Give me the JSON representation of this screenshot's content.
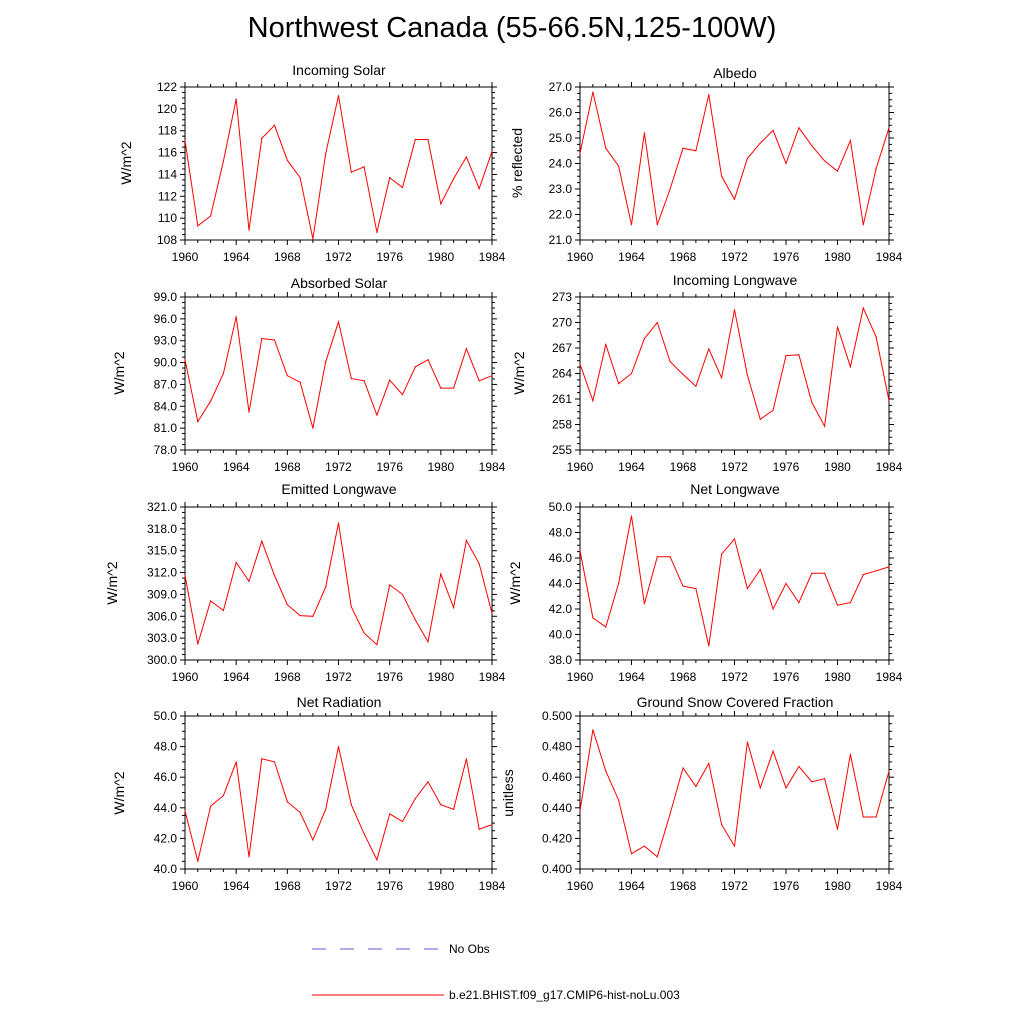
{
  "figure": {
    "title": "Northwest Canada (55-66.5N,125-100W)"
  },
  "legend": {
    "entries": [
      {
        "label": "No Obs",
        "style": "dashed",
        "color": "#5b5bd6"
      },
      {
        "label": "b.e21.BHIST.f09_g17.CMIP6-hist-noLu.003",
        "style": "solid",
        "color": "#ff0000"
      }
    ]
  },
  "chart_data": [
    {
      "type": "line",
      "title": "Incoming Solar",
      "ylabel": "W/m^2",
      "xlim": [
        1960,
        1984
      ],
      "ylim": [
        108,
        122
      ],
      "x_ticks": [
        "1960",
        "1964",
        "1968",
        "1972",
        "1976",
        "1980",
        "1984"
      ],
      "y_ticks": [
        "108",
        "110",
        "112",
        "114",
        "116",
        "118",
        "120",
        "122"
      ],
      "x": [
        1960,
        1961,
        1962,
        1963,
        1964,
        1965,
        1966,
        1967,
        1968,
        1969,
        1970,
        1971,
        1972,
        1973,
        1974,
        1975,
        1976,
        1977,
        1978,
        1979,
        1980,
        1981,
        1982,
        1983,
        1984
      ],
      "series": [
        {
          "name": "b.e21.BHIST.f09_g17.CMIP6-hist-noLu.003",
          "color": "#ff0000",
          "values": [
            117.1,
            109.3,
            110.2,
            115.2,
            120.9,
            108.9,
            117.3,
            118.5,
            115.3,
            113.7,
            108.1,
            115.9,
            121.2,
            114.2,
            114.7,
            108.7,
            113.7,
            112.8,
            117.2,
            117.2,
            111.3,
            113.6,
            115.6,
            112.7,
            116.1
          ]
        }
      ]
    },
    {
      "type": "line",
      "title": "Albedo",
      "ylabel": "% reflected",
      "xlim": [
        1960,
        1984
      ],
      "ylim": [
        21.0,
        27.0
      ],
      "x_ticks": [
        "1960",
        "1964",
        "1968",
        "1972",
        "1976",
        "1980",
        "1984"
      ],
      "y_ticks": [
        "21.0",
        "22.0",
        "23.0",
        "24.0",
        "25.0",
        "26.0",
        "27.0"
      ],
      "x": [
        1960,
        1961,
        1962,
        1963,
        1964,
        1965,
        1966,
        1967,
        1968,
        1969,
        1970,
        1971,
        1972,
        1973,
        1974,
        1975,
        1976,
        1977,
        1978,
        1979,
        1980,
        1981,
        1982,
        1983,
        1984
      ],
      "series": [
        {
          "name": "b.e21.BHIST.f09_g17.CMIP6-hist-noLu.003",
          "color": "#ff0000",
          "values": [
            24.4,
            26.8,
            24.6,
            23.9,
            21.6,
            25.2,
            21.6,
            23.0,
            24.6,
            24.5,
            26.7,
            23.5,
            22.6,
            24.2,
            24.8,
            25.3,
            24.0,
            25.4,
            24.7,
            24.1,
            23.7,
            24.9,
            21.6,
            23.8,
            25.4
          ]
        }
      ]
    },
    {
      "type": "line",
      "title": "Absorbed Solar",
      "ylabel": "W/m^2",
      "xlim": [
        1960,
        1984
      ],
      "ylim": [
        78.0,
        99.0
      ],
      "x_ticks": [
        "1960",
        "1964",
        "1968",
        "1972",
        "1976",
        "1980",
        "1984"
      ],
      "y_ticks": [
        "78.0",
        "81.0",
        "84.0",
        "87.0",
        "90.0",
        "93.0",
        "96.0",
        "99.0"
      ],
      "x": [
        1960,
        1961,
        1962,
        1963,
        1964,
        1965,
        1966,
        1967,
        1968,
        1969,
        1970,
        1971,
        1972,
        1973,
        1974,
        1975,
        1976,
        1977,
        1978,
        1979,
        1980,
        1981,
        1982,
        1983,
        1984
      ],
      "series": [
        {
          "name": "b.e21.BHIST.f09_g17.CMIP6-hist-noLu.003",
          "color": "#ff0000",
          "values": [
            90.4,
            81.9,
            84.7,
            88.5,
            96.3,
            83.2,
            93.3,
            93.1,
            88.2,
            87.3,
            81.0,
            90.1,
            95.6,
            87.8,
            87.5,
            82.8,
            87.6,
            85.6,
            89.4,
            90.4,
            86.5,
            86.5,
            91.9,
            87.5,
            88.2
          ]
        }
      ]
    },
    {
      "type": "line",
      "title": "Incoming Longwave",
      "ylabel": "W/m^2",
      "xlim": [
        1960,
        1984
      ],
      "ylim": [
        255,
        273
      ],
      "x_ticks": [
        "1960",
        "1964",
        "1968",
        "1972",
        "1976",
        "1980",
        "1984"
      ],
      "y_ticks": [
        "255",
        "258",
        "261",
        "264",
        "267",
        "270",
        "273"
      ],
      "x": [
        1960,
        1961,
        1962,
        1963,
        1964,
        1965,
        1966,
        1967,
        1968,
        1969,
        1970,
        1971,
        1972,
        1973,
        1974,
        1975,
        1976,
        1977,
        1978,
        1979,
        1980,
        1981,
        1982,
        1983,
        1984
      ],
      "series": [
        {
          "name": "b.e21.BHIST.f09_g17.CMIP6-hist-noLu.003",
          "color": "#ff0000",
          "values": [
            265.1,
            260.8,
            267.4,
            262.8,
            264.0,
            268.1,
            270.0,
            265.4,
            263.9,
            262.5,
            266.9,
            263.5,
            271.5,
            263.8,
            258.6,
            259.7,
            266.1,
            266.2,
            260.6,
            257.8,
            269.5,
            264.8,
            271.7,
            268.3,
            260.8
          ]
        }
      ]
    },
    {
      "type": "line",
      "title": "Emitted Longwave",
      "ylabel": "W/m^2",
      "xlim": [
        1960,
        1984
      ],
      "ylim": [
        300.0,
        321.0
      ],
      "x_ticks": [
        "1960",
        "1964",
        "1968",
        "1972",
        "1976",
        "1980",
        "1984"
      ],
      "y_ticks": [
        "300.0",
        "303.0",
        "306.0",
        "309.0",
        "312.0",
        "315.0",
        "318.0",
        "321.0"
      ],
      "x": [
        1960,
        1961,
        1962,
        1963,
        1964,
        1965,
        1966,
        1967,
        1968,
        1969,
        1970,
        1971,
        1972,
        1973,
        1974,
        1975,
        1976,
        1977,
        1978,
        1979,
        1980,
        1981,
        1982,
        1983,
        1984
      ],
      "series": [
        {
          "name": "b.e21.BHIST.f09_g17.CMIP6-hist-noLu.003",
          "color": "#ff0000",
          "values": [
            311.6,
            302.2,
            308.1,
            306.8,
            313.4,
            310.8,
            316.3,
            311.6,
            307.6,
            306.1,
            306.0,
            310.0,
            318.8,
            307.3,
            303.7,
            302.1,
            310.3,
            309.0,
            305.5,
            302.5,
            311.8,
            307.2,
            316.4,
            313.2,
            306.4
          ]
        }
      ]
    },
    {
      "type": "line",
      "title": "Net Longwave",
      "ylabel": "W/m^2",
      "xlim": [
        1960,
        1984
      ],
      "ylim": [
        38.0,
        50.0
      ],
      "x_ticks": [
        "1960",
        "1964",
        "1968",
        "1972",
        "1976",
        "1980",
        "1984"
      ],
      "y_ticks": [
        "38.0",
        "40.0",
        "42.0",
        "44.0",
        "46.0",
        "48.0",
        "50.0"
      ],
      "x": [
        1960,
        1961,
        1962,
        1963,
        1964,
        1965,
        1966,
        1967,
        1968,
        1969,
        1970,
        1971,
        1972,
        1973,
        1974,
        1975,
        1976,
        1977,
        1978,
        1979,
        1980,
        1981,
        1982,
        1983,
        1984
      ],
      "series": [
        {
          "name": "b.e21.BHIST.f09_g17.CMIP6-hist-noLu.003",
          "color": "#ff0000",
          "values": [
            46.6,
            41.3,
            40.6,
            44.0,
            49.3,
            42.4,
            46.1,
            46.1,
            43.8,
            43.6,
            39.1,
            46.3,
            47.5,
            43.6,
            45.1,
            42.0,
            44.0,
            42.5,
            44.8,
            44.8,
            42.3,
            42.5,
            44.7,
            45.0,
            45.3
          ]
        }
      ]
    },
    {
      "type": "line",
      "title": "Net Radiation",
      "ylabel": "W/m^2",
      "xlim": [
        1960,
        1984
      ],
      "ylim": [
        40.0,
        50.0
      ],
      "x_ticks": [
        "1960",
        "1964",
        "1968",
        "1972",
        "1976",
        "1980",
        "1984"
      ],
      "y_ticks": [
        "40.0",
        "42.0",
        "44.0",
        "46.0",
        "48.0",
        "50.0"
      ],
      "x": [
        1960,
        1961,
        1962,
        1963,
        1964,
        1965,
        1966,
        1967,
        1968,
        1969,
        1970,
        1971,
        1972,
        1973,
        1974,
        1975,
        1976,
        1977,
        1978,
        1979,
        1980,
        1981,
        1982,
        1983,
        1984
      ],
      "series": [
        {
          "name": "b.e21.BHIST.f09_g17.CMIP6-hist-noLu.003",
          "color": "#ff0000",
          "values": [
            43.8,
            40.5,
            44.1,
            44.8,
            47.0,
            40.8,
            47.2,
            47.0,
            44.4,
            43.7,
            41.9,
            43.9,
            48.0,
            44.2,
            42.3,
            40.6,
            43.6,
            43.1,
            44.6,
            45.7,
            44.2,
            43.9,
            47.2,
            42.6,
            42.9
          ]
        }
      ]
    },
    {
      "type": "line",
      "title": "Ground Snow Covered Fraction",
      "ylabel": "unitless",
      "xlim": [
        1960,
        1984
      ],
      "ylim": [
        0.4,
        0.5
      ],
      "x_ticks": [
        "1960",
        "1964",
        "1968",
        "1972",
        "1976",
        "1980",
        "1984"
      ],
      "y_ticks": [
        "0.400",
        "0.420",
        "0.440",
        "0.460",
        "0.480",
        "0.500"
      ],
      "x": [
        1960,
        1961,
        1962,
        1963,
        1964,
        1965,
        1966,
        1967,
        1968,
        1969,
        1970,
        1971,
        1972,
        1973,
        1974,
        1975,
        1976,
        1977,
        1978,
        1979,
        1980,
        1981,
        1982,
        1983,
        1984
      ],
      "series": [
        {
          "name": "b.e21.BHIST.f09_g17.CMIP6-hist-noLu.003",
          "color": "#ff0000",
          "values": [
            0.438,
            0.491,
            0.464,
            0.445,
            0.41,
            0.415,
            0.408,
            0.436,
            0.466,
            0.454,
            0.469,
            0.429,
            0.415,
            0.483,
            0.453,
            0.477,
            0.453,
            0.467,
            0.457,
            0.459,
            0.426,
            0.475,
            0.434,
            0.434,
            0.464
          ]
        }
      ]
    }
  ]
}
